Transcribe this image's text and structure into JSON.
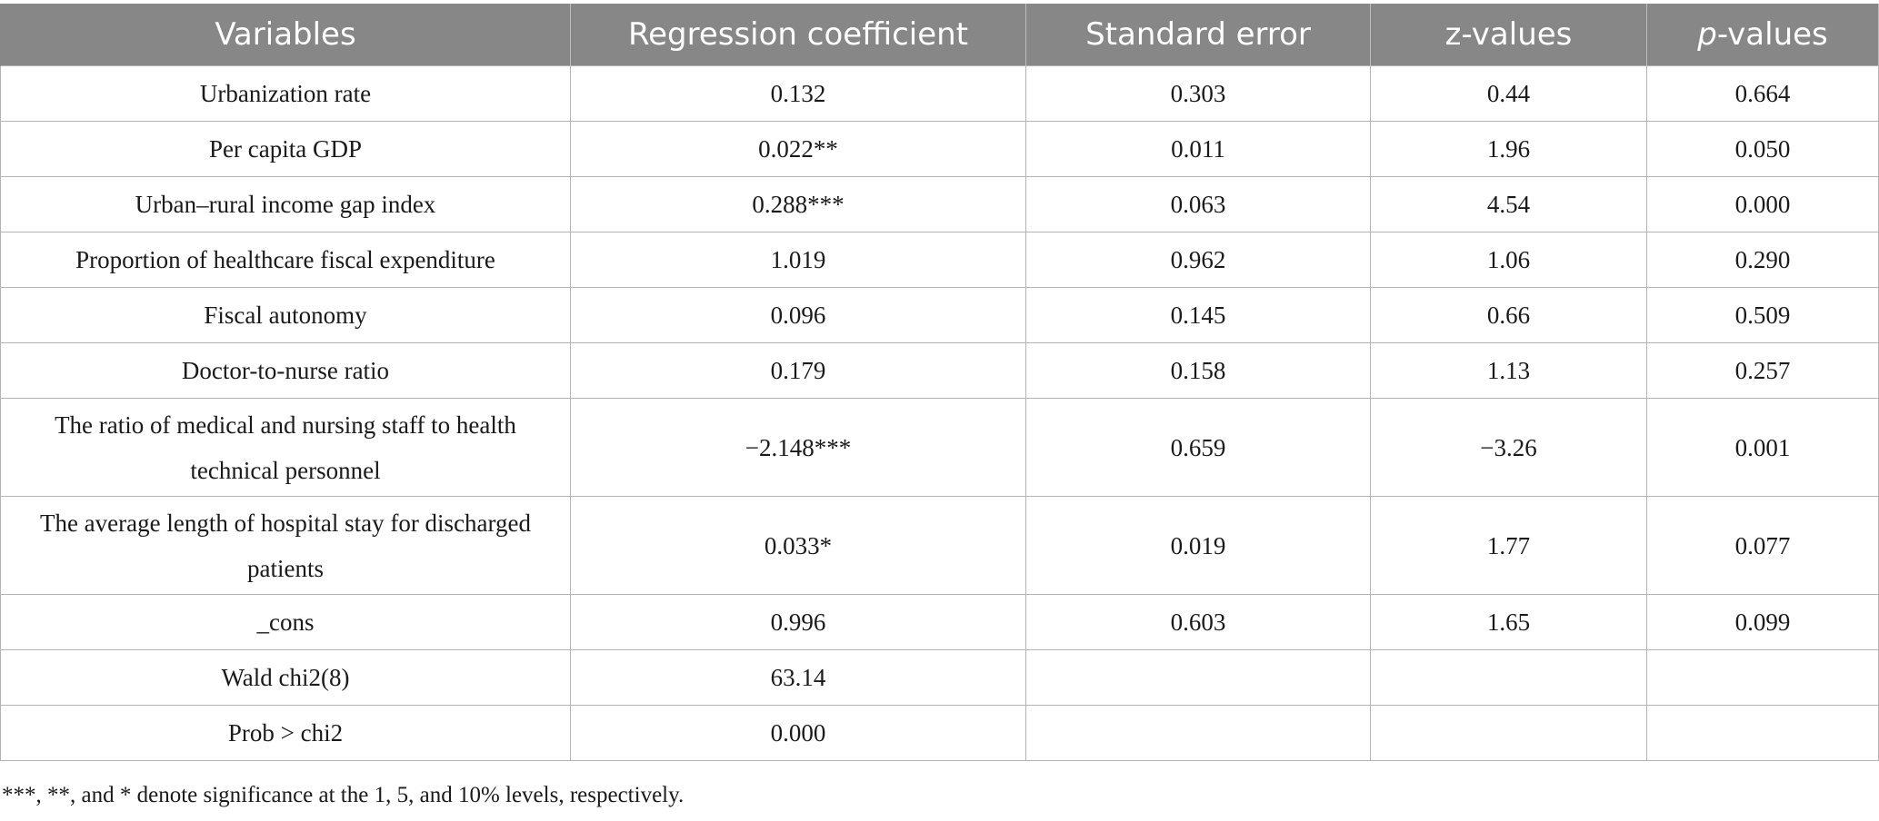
{
  "table": {
    "headers": {
      "variables": "Variables",
      "coefficient": "Regression coefficient",
      "std_error": "Standard error",
      "z_values": "z-values",
      "p_values_italic": "p",
      "p_values_rest": "-values"
    },
    "rows": [
      {
        "variable": "Urbanization rate",
        "coefficient": "0.132",
        "std_error": "0.303",
        "z": "0.44",
        "p": "0.664"
      },
      {
        "variable": "Per capita GDP",
        "coefficient": "0.022**",
        "std_error": "0.011",
        "z": "1.96",
        "p": "0.050"
      },
      {
        "variable": "Urban–rural income gap index",
        "coefficient": "0.288***",
        "std_error": "0.063",
        "z": "4.54",
        "p": "0.000"
      },
      {
        "variable": "Proportion of healthcare fiscal expenditure",
        "coefficient": "1.019",
        "std_error": "0.962",
        "z": "1.06",
        "p": "0.290"
      },
      {
        "variable": "Fiscal autonomy",
        "coefficient": "0.096",
        "std_error": "0.145",
        "z": "0.66",
        "p": "0.509"
      },
      {
        "variable": "Doctor-to-nurse ratio",
        "coefficient": "0.179",
        "std_error": "0.158",
        "z": "1.13",
        "p": "0.257"
      },
      {
        "variable": "The ratio of medical and nursing staff to health technical personnel",
        "coefficient": "−2.148***",
        "std_error": "0.659",
        "z": "−3.26",
        "p": "0.001"
      },
      {
        "variable": "The average length of hospital stay for discharged patients",
        "coefficient": "0.033*",
        "std_error": "0.019",
        "z": "1.77",
        "p": "0.077"
      },
      {
        "variable": "_cons",
        "coefficient": "0.996",
        "std_error": "0.603",
        "z": "1.65",
        "p": "0.099"
      },
      {
        "variable": "Wald chi2(8)",
        "coefficient": "63.14",
        "std_error": "",
        "z": "",
        "p": ""
      },
      {
        "variable": "Prob > chi2",
        "coefficient": "0.000",
        "std_error": "",
        "z": "",
        "p": ""
      }
    ]
  },
  "footnote": "***, **, and * denote significance at the 1, 5, and 10% levels, respectively.",
  "colors": {
    "header_bg": "#878787",
    "header_text": "#ffffff",
    "border": "#b3b3b3"
  }
}
